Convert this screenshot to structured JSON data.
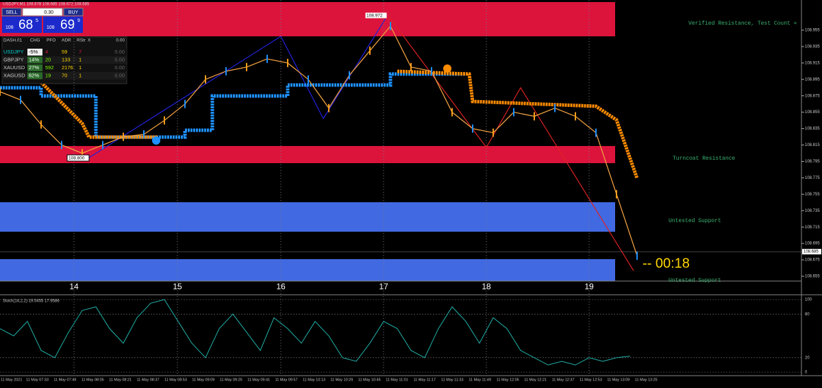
{
  "header": {
    "text": "USDJPY,M1 108.678 108.685 108.672 108.685"
  },
  "trade_panel": {
    "sell": "SELL",
    "lot": "0.30",
    "buy": "BUY",
    "sell_big": "108",
    "sell_main": "68",
    "sell_sup": "5",
    "buy_big": "108",
    "buy_main": "69",
    "buy_sup": "9"
  },
  "dashboard": {
    "header": [
      "DASH.01",
      "CHG",
      "PFO",
      "ADR",
      "RStr",
      "X",
      "0.00"
    ],
    "rows": [
      [
        "USDJPY",
        "-5%",
        "4",
        "59",
        "7",
        "0.00"
      ],
      [
        "GBPJPY",
        "14%",
        "20",
        "133",
        "1",
        "0.00"
      ],
      [
        "XAUUSD",
        "27%",
        "592",
        "2176",
        "1",
        "0.00"
      ],
      [
        "XAGUSD",
        "62%",
        "19",
        "70",
        "1",
        "0.00"
      ]
    ]
  },
  "price_axis": {
    "ticks": [
      108.955,
      108.935,
      108.915,
      108.895,
      108.875,
      108.855,
      108.835,
      108.815,
      108.795,
      108.775,
      108.755,
      108.735,
      108.715,
      108.695,
      108.675,
      108.655
    ],
    "current": 108.685
  },
  "price_labels": {
    "high": "108.972",
    "low": "108.800"
  },
  "price_path": [
    108.88,
    108.87,
    108.84,
    108.815,
    108.805,
    108.815,
    108.825,
    108.828,
    108.845,
    108.865,
    108.895,
    108.905,
    108.91,
    108.92,
    108.915,
    108.895,
    108.86,
    108.9,
    108.93,
    108.96,
    108.91,
    108.905,
    108.855,
    108.835,
    108.83,
    108.855,
    108.85,
    108.86,
    108.85,
    108.83,
    108.755,
    108.68
  ],
  "zones": [
    "Verified Resistance, Test Count =",
    "Turncoat Resistance",
    "Untested Support",
    "Untested Support"
  ],
  "timer": "-- 00:18",
  "days": [
    "14",
    "15",
    "16",
    "17",
    "18",
    "19"
  ],
  "stoch": {
    "label": "Stoch(14,2,2) 19.5455 17.9586",
    "ticks": [
      100,
      80,
      20,
      0
    ],
    "values": [
      60,
      50,
      70,
      30,
      20,
      55,
      85,
      90,
      60,
      40,
      75,
      95,
      100,
      70,
      40,
      20,
      60,
      80,
      55,
      30,
      75,
      60,
      40,
      70,
      50,
      20,
      15,
      40,
      70,
      60,
      30,
      20,
      60,
      90,
      70,
      40,
      75,
      60,
      30,
      20,
      10,
      15,
      10,
      20,
      15,
      20,
      22
    ]
  },
  "time_axis": [
    "11 May 2021",
    "11 May 07:33",
    "11 May 07:49",
    "11 May 08:05",
    "11 May 08:21",
    "11 May 08:37",
    "11 May 08:53",
    "11 May 09:09",
    "11 May 09:25",
    "11 May 09:41",
    "11 May 09:57",
    "11 May 10:13",
    "11 May 10:29",
    "11 May 10:45",
    "11 May 11:01",
    "11 May 11:17",
    "11 May 11:33",
    "11 May 11:49",
    "11 May 12:05",
    "11 May 12:21",
    "11 May 12:37",
    "11 May 12:53",
    "11 May 13:09",
    "11 May 13:25"
  ]
}
